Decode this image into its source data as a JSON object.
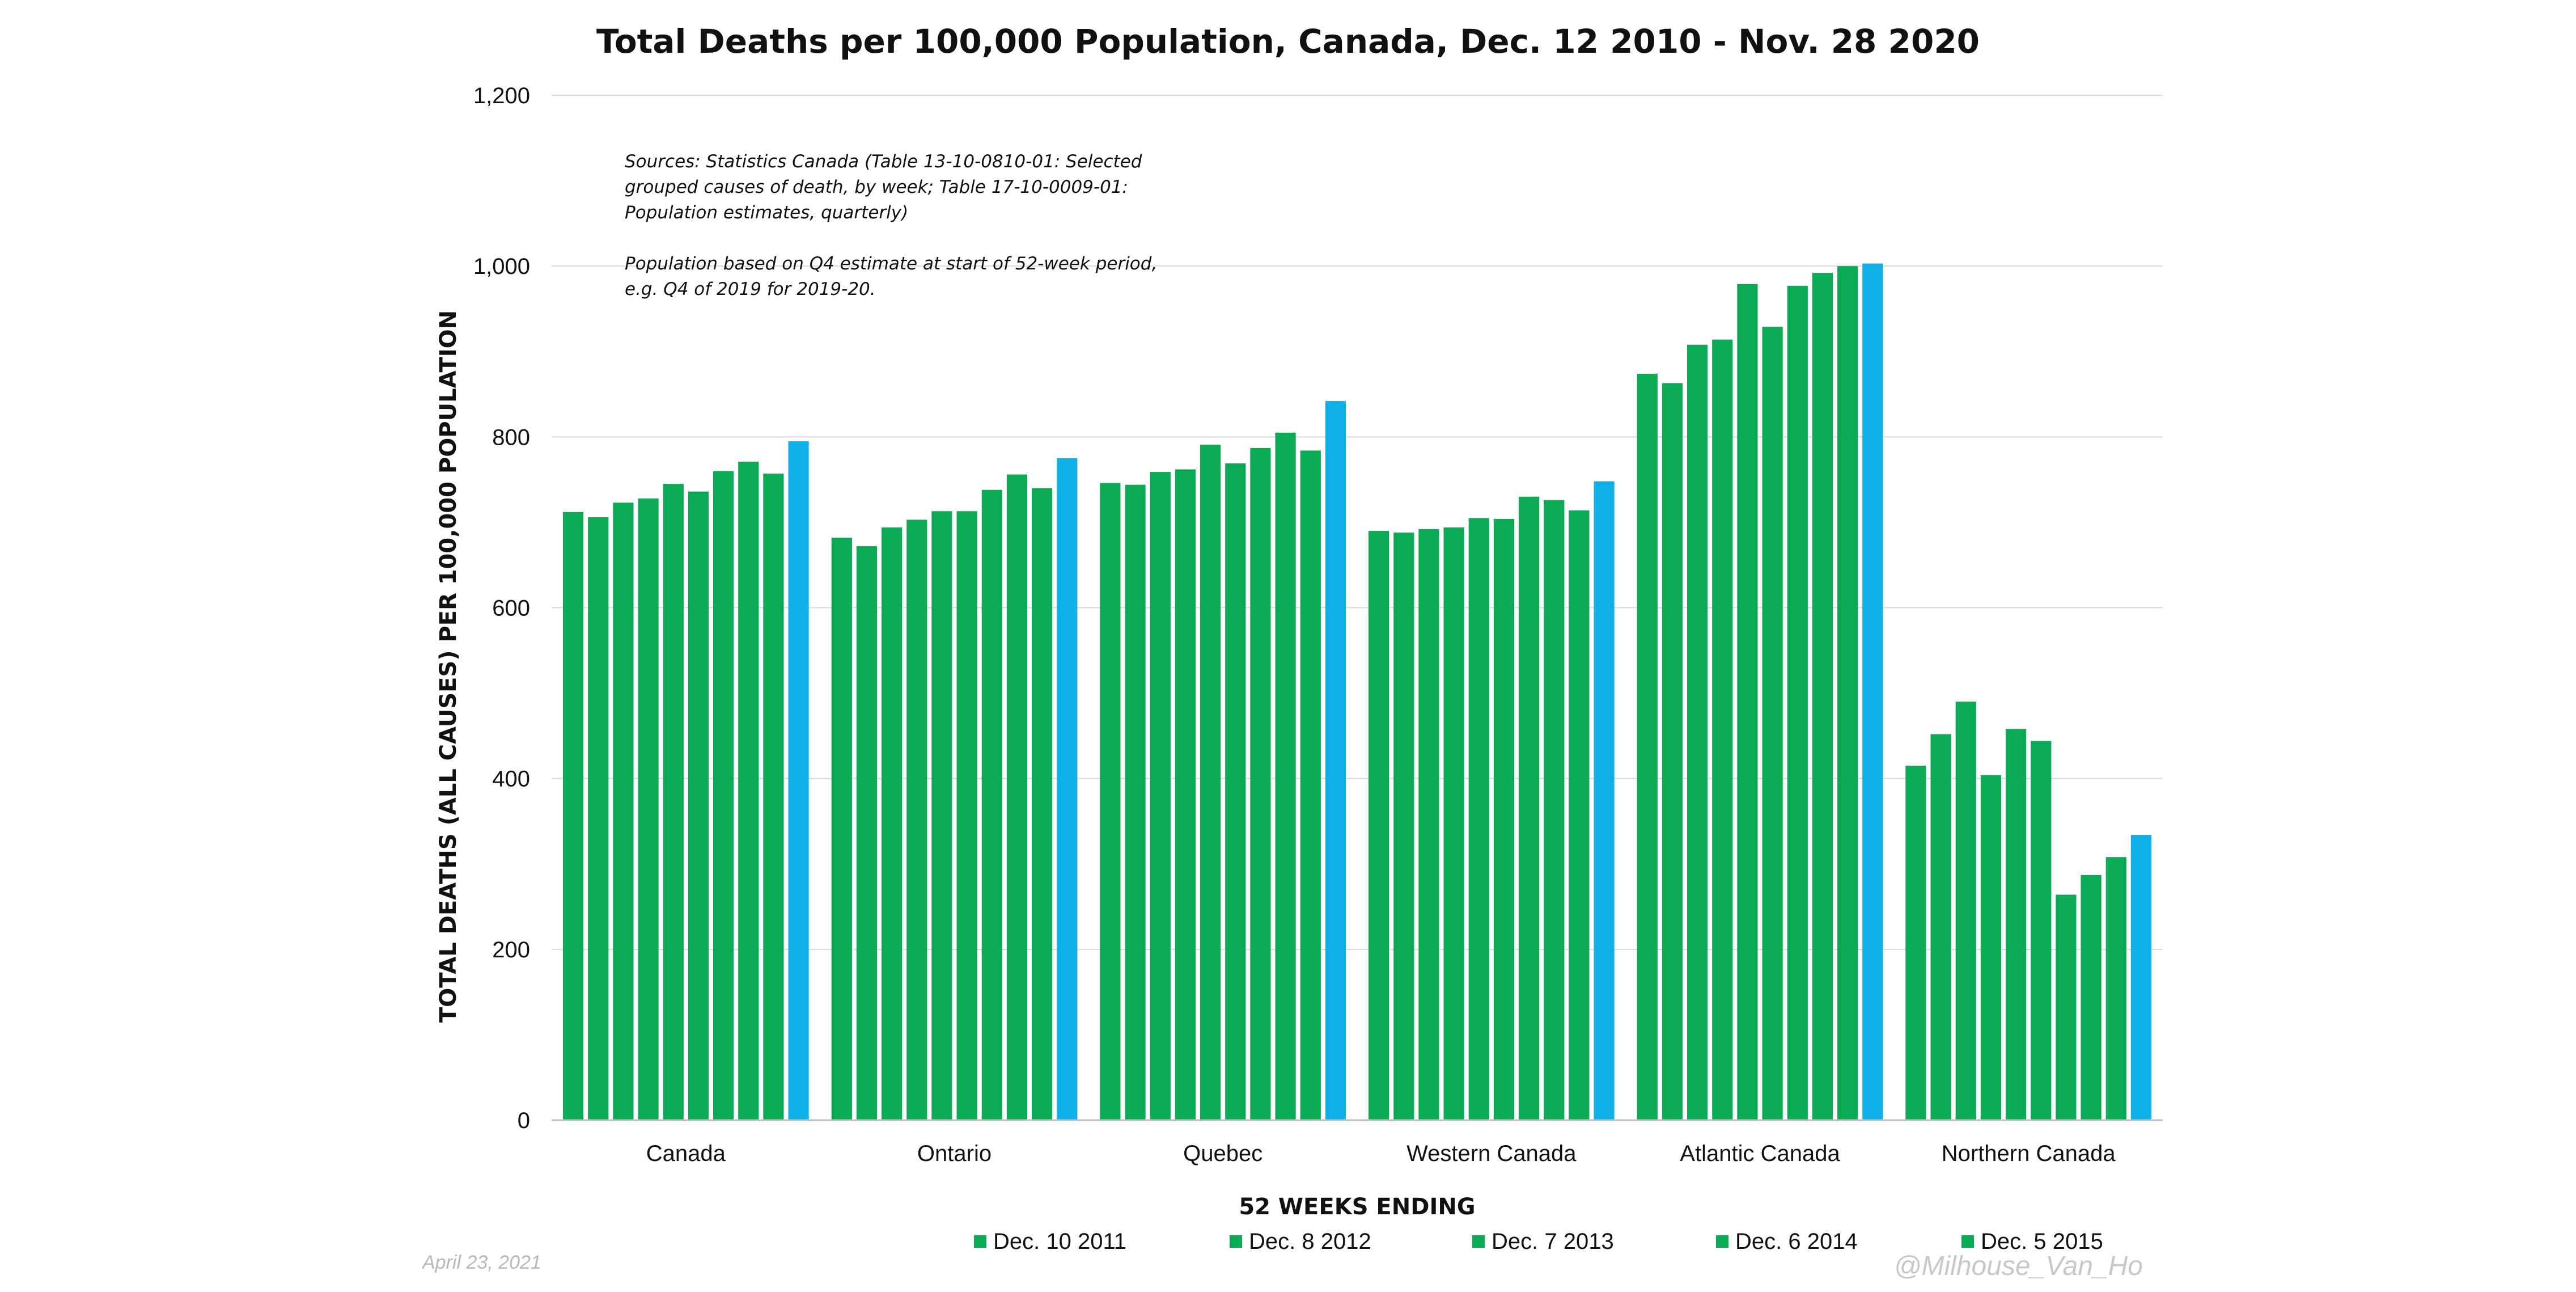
{
  "chart_data": {
    "type": "bar",
    "title": "Total Deaths per 100,000 Population, Canada, Dec. 12 2010 - Nov. 28 2020",
    "xlabel": "52 WEEKS ENDING",
    "ylabel": "TOTAL DEATHS (ALL CAUSES) PER 100,000 POPULATION",
    "ylim": [
      0,
      1200
    ],
    "yticks": [
      "0",
      "200",
      "400",
      "600",
      "800",
      "1,000",
      "1,200"
    ],
    "ytick_values": [
      0,
      200,
      400,
      600,
      800,
      1000,
      1200
    ],
    "grid": true,
    "legend_position": "bottom",
    "categories": [
      "Canada",
      "Ontario",
      "Quebec",
      "Western Canada",
      "Atlantic Canada",
      "Northern Canada"
    ],
    "series": [
      {
        "name": "",
        "values": [
          712,
          682,
          746,
          690,
          874,
          415
        ]
      },
      {
        "name": "Dec. 10 2011",
        "values": [
          706,
          672,
          744,
          688,
          863,
          452
        ]
      },
      {
        "name": "",
        "values": [
          723,
          694,
          759,
          692,
          908,
          490
        ]
      },
      {
        "name": "",
        "values": [
          728,
          703,
          762,
          694,
          914,
          404
        ]
      },
      {
        "name": "Dec. 8 2012",
        "values": [
          745,
          713,
          791,
          705,
          979,
          458
        ]
      },
      {
        "name": "",
        "values": [
          736,
          713,
          769,
          704,
          929,
          444
        ]
      },
      {
        "name": "Dec. 7 2013",
        "values": [
          760,
          738,
          787,
          730,
          977,
          264
        ]
      },
      {
        "name": "",
        "values": [
          771,
          756,
          805,
          726,
          992,
          287
        ]
      },
      {
        "name": "Dec. 6 2014",
        "values": [
          757,
          740,
          784,
          714,
          1000,
          308
        ]
      },
      {
        "name": "Dec. 5 2015",
        "values": [
          795,
          775,
          842,
          748,
          1003,
          334
        ]
      }
    ],
    "legend_entries": [
      "Dec. 10 2011",
      "Dec. 8 2012",
      "Dec. 7 2013",
      "Dec. 6 2014",
      "Dec. 5 2015"
    ],
    "colors": {
      "bar": "#0aab54",
      "highlight": "#0fb0e8",
      "grid": "#d9d9d9",
      "axis": "#bfbfbf"
    },
    "annotations": [
      "Sources: Statistics Canada (Table 13-10-0810-01: Selected",
      "grouped causes of death, by week; Table 17-10-0009-01:",
      "Population estimates, quarterly)",
      "Population based on Q4 estimate at start of 52-week period,",
      "e.g. Q4 of 2019 for 2019-20."
    ]
  },
  "footer": {
    "date": "April 23, 2021",
    "handle": "@Milhouse_Van_Ho"
  }
}
